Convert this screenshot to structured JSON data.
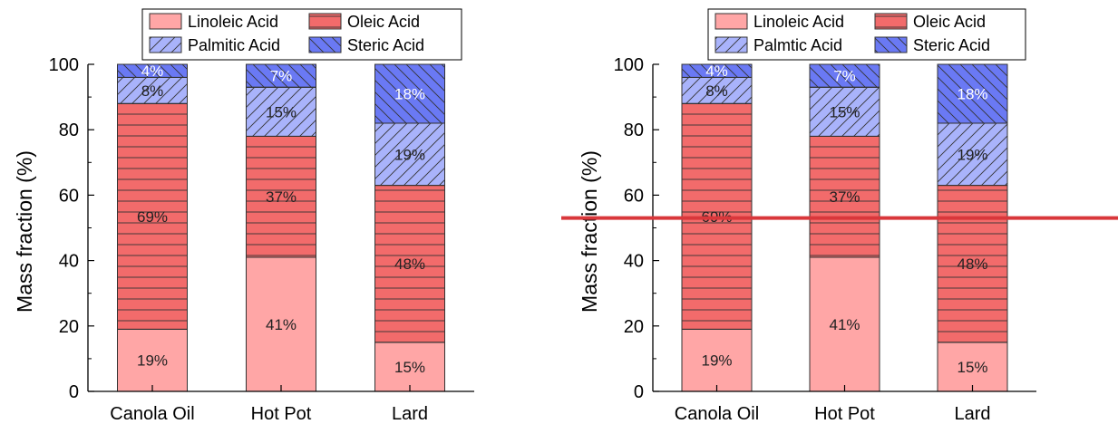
{
  "chart_data": [
    {
      "type": "bar",
      "stacked": true,
      "categories": [
        "Canola Oil",
        "Hot Pot",
        "Lard"
      ],
      "series": [
        {
          "name": "Linoleic Acid",
          "values": [
            19,
            41,
            15
          ],
          "labels": [
            "19%",
            "41%",
            "15%"
          ],
          "color": "#ffa6a6",
          "hatch": "none"
        },
        {
          "name": "Oleic Acid",
          "values": [
            69,
            37,
            48
          ],
          "labels": [
            "69%",
            "37%",
            "48%"
          ],
          "color": "#f26b6b",
          "hatch": "horizontal"
        },
        {
          "name": "Palmitic Acid",
          "values": [
            8,
            15,
            19
          ],
          "labels": [
            "8%",
            "15%",
            "19%"
          ],
          "color": "#a9b3fb",
          "hatch": "forward-diagonal"
        },
        {
          "name": "Steric Acid",
          "values": [
            4,
            7,
            18
          ],
          "labels": [
            "4%",
            "7%",
            "18%"
          ],
          "color": "#6a79f4",
          "hatch": "backward-diagonal"
        }
      ],
      "ylabel": "Mass fraction (%)",
      "ylim": [
        0,
        100
      ],
      "yticks": [
        0,
        20,
        40,
        60,
        80,
        100
      ],
      "legend_position": "top",
      "grid": false
    },
    {
      "type": "bar",
      "stacked": true,
      "categories": [
        "Canola Oil",
        "Hot Pot",
        "Lard"
      ],
      "series": [
        {
          "name": "Linoleic Acid",
          "values": [
            19,
            41,
            15
          ],
          "labels": [
            "19%",
            "41%",
            "15%"
          ],
          "color": "#ffa6a6",
          "hatch": "none"
        },
        {
          "name": "Oleic Acid",
          "values": [
            69,
            37,
            48
          ],
          "labels": [
            "69%",
            "37%",
            "48%"
          ],
          "color": "#f26b6b",
          "hatch": "horizontal"
        },
        {
          "name": "Palmtic Acid",
          "values": [
            8,
            15,
            19
          ],
          "labels": [
            "8%",
            "15%",
            "19%"
          ],
          "color": "#a9b3fb",
          "hatch": "forward-diagonal"
        },
        {
          "name": "Steric Acid",
          "values": [
            4,
            7,
            18
          ],
          "labels": [
            "4%",
            "7%",
            "18%"
          ],
          "color": "#6a79f4",
          "hatch": "backward-diagonal"
        }
      ],
      "ylabel": "Mass fraction (%)",
      "ylim": [
        0,
        100
      ],
      "yticks": [
        0,
        20,
        40,
        60,
        80,
        100
      ],
      "legend_position": "top",
      "grid": false,
      "reference_line": {
        "y": 53,
        "color": "#d9373b"
      }
    }
  ]
}
